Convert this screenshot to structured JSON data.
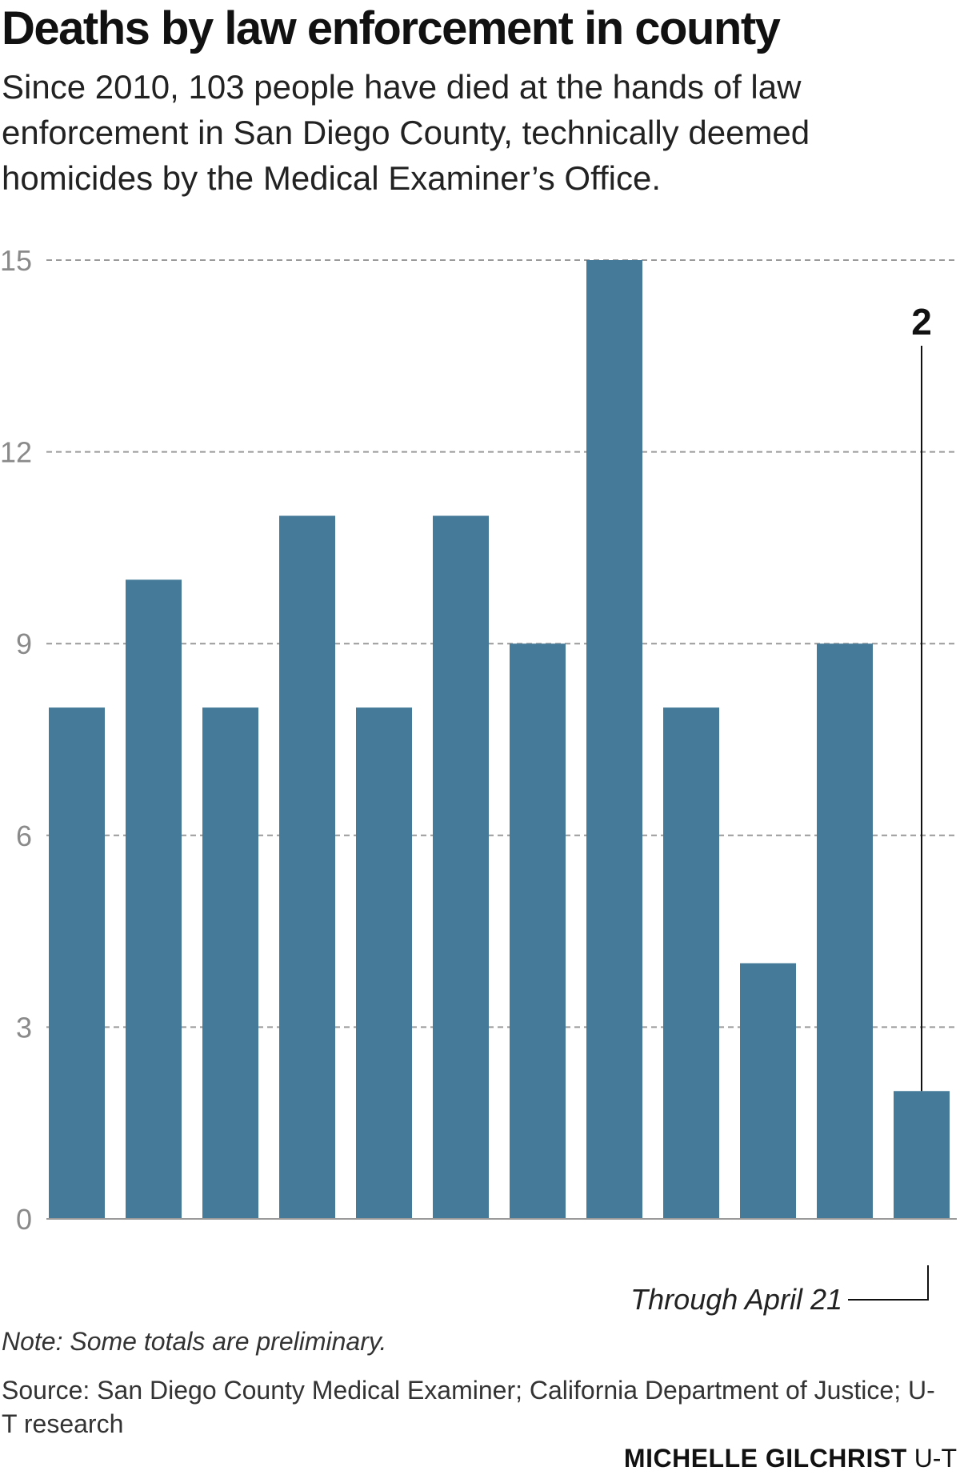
{
  "header": {
    "title": "Deaths by law enforcement in county",
    "subtitle": "Since 2010, 103 people have died at the hands of law enforcement in San Diego County, technically deemed homicides by the Medical Examiner’s Office."
  },
  "chart_data": {
    "type": "bar",
    "title": "Deaths by law enforcement in county",
    "xlabel": "",
    "ylabel": "",
    "ylim": [
      0,
      15
    ],
    "yticks": [
      0,
      3,
      6,
      9,
      12,
      15
    ],
    "values": [
      8,
      10,
      8,
      11,
      8,
      11,
      9,
      15,
      8,
      4,
      9,
      2
    ],
    "grid": true,
    "legend": "none",
    "bar_color": "#457b98",
    "annotations": [
      {
        "text": "2",
        "target_index": 11
      },
      {
        "text": "Through April 21",
        "target_index": 11
      }
    ]
  },
  "footer": {
    "note": "Note: Some totals are preliminary.",
    "source": "Source: San Diego County Medical Examiner; California Department of Justice; U-T research",
    "credit_name": "MICHELLE GILCHRIST",
    "credit_org": "U-T"
  }
}
